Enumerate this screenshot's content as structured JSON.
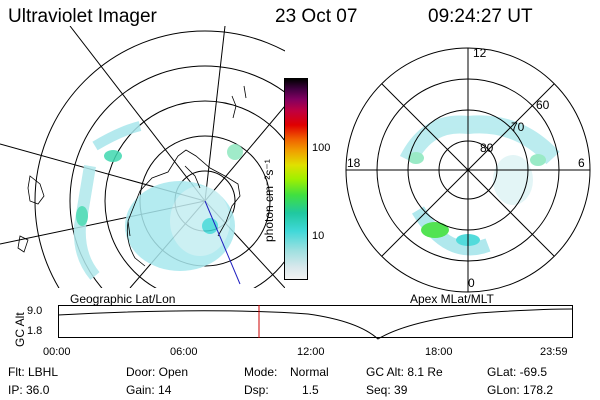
{
  "header": {
    "title": "Ultraviolet Imager",
    "date": "23 Oct 07",
    "time": "09:24:27 UT"
  },
  "colorbar": {
    "unit_label": "photon cm⁻²s⁻¹",
    "ticks": [
      "100",
      "10"
    ],
    "colors": [
      "#f2f2f2",
      "#d8e8ec",
      "#a0e0e0",
      "#40d8d8",
      "#20c8a0",
      "#40e040",
      "#a0f000",
      "#e0e000",
      "#f0a000",
      "#f06000",
      "#e00000",
      "#c00040",
      "#800060",
      "#400040",
      "#000000"
    ]
  },
  "left_map": {
    "label": "Geographic Lat/Lon"
  },
  "right_map": {
    "label": "Apex MLat/MLT",
    "mlt_labels": {
      "top": "12",
      "left": "18",
      "right": "6",
      "bottom": "0"
    },
    "lat_labels": [
      "60",
      "70",
      "80"
    ]
  },
  "timeline": {
    "axis_label": "GC Alt",
    "y_ticks": [
      "9.0",
      "1.8"
    ],
    "x_ticks": [
      "00:00",
      "06:00",
      "12:00",
      "18:00",
      "23:59"
    ],
    "current_marker_color": "#cc0000"
  },
  "info": {
    "row1": {
      "flt": "Flt: LBHL",
      "door": "Door: Open",
      "mode_label": "Mode:",
      "mode_value": "Normal",
      "gcalt": "GC Alt: 8.1 Re",
      "glat": "GLat: -69.5"
    },
    "row2": {
      "ip": "IP: 36.0",
      "gain": "Gain: 14",
      "dsp_label": "Dsp:",
      "dsp_value": "1.5",
      "seq": "Seq: 39",
      "glon": "GLon: 178.2"
    }
  }
}
